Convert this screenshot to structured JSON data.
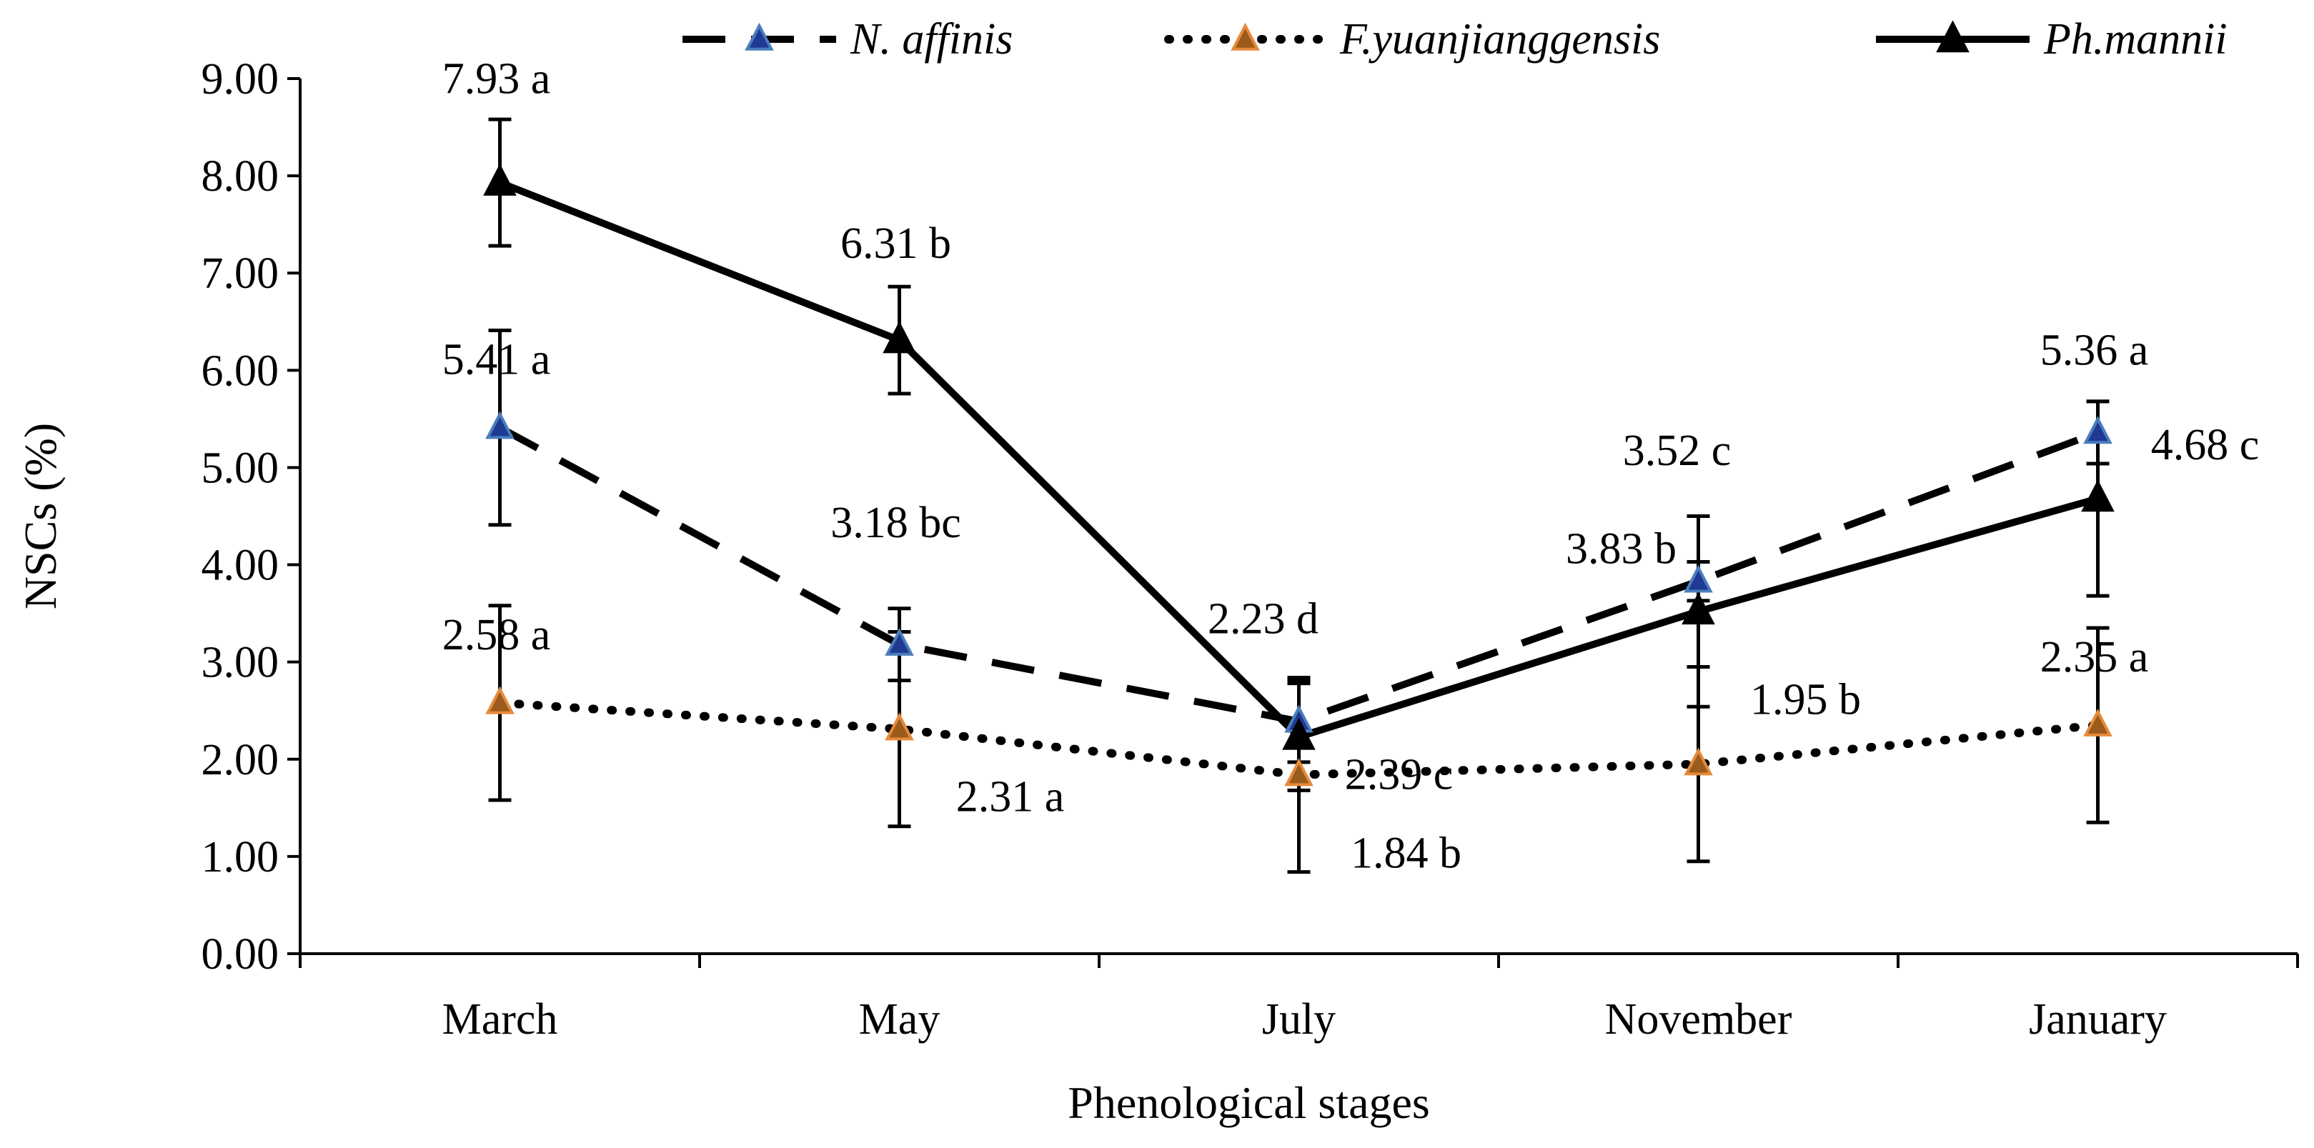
{
  "chart_data": {
    "type": "line",
    "title": "",
    "xlabel": "Phenological stages",
    "ylabel": "NSCs (%)",
    "ylim": [
      0,
      9
    ],
    "y_ticks": [
      "0.00",
      "1.00",
      "2.00",
      "3.00",
      "4.00",
      "5.00",
      "6.00",
      "7.00",
      "8.00",
      "9.00"
    ],
    "categories": [
      "March",
      "May",
      "July",
      "November",
      "January"
    ],
    "grid": false,
    "legend_position": "top",
    "series": [
      {
        "name": "N. affinis",
        "style": "dashed",
        "marker_fill": "#1f3a93",
        "marker_edge": "#4a7ebb",
        "values": [
          5.41,
          3.18,
          2.39,
          3.83,
          5.36
        ],
        "errors": [
          1.0,
          0.37,
          0.42,
          0.2,
          0.32
        ],
        "labels": [
          "5.41 a",
          "3.18 bc",
          "2.39 c",
          "3.83 b",
          "5.36 a"
        ]
      },
      {
        "name": "F.yuanjianggensis",
        "style": "dotted",
        "marker_fill": "#9a5b1c",
        "marker_edge": "#e68a3a",
        "values": [
          2.58,
          2.31,
          1.84,
          1.95,
          2.35
        ],
        "errors": [
          1.0,
          1.0,
          1.0,
          1.0,
          1.0
        ],
        "labels": [
          "2.58 a",
          "2.31 a",
          "1.84 b",
          "1.95 b",
          "2.35 a"
        ]
      },
      {
        "name": "Ph.mannii",
        "style": "solid",
        "marker_fill": "#000000",
        "marker_edge": "#000000",
        "values": [
          7.93,
          6.31,
          2.23,
          3.52,
          4.68
        ],
        "errors": [
          0.65,
          0.55,
          0.55,
          0.98,
          1.0
        ],
        "labels": [
          "7.93 a",
          "6.31 b",
          "2.23 d",
          "3.52 c",
          "4.68 c"
        ]
      }
    ]
  }
}
